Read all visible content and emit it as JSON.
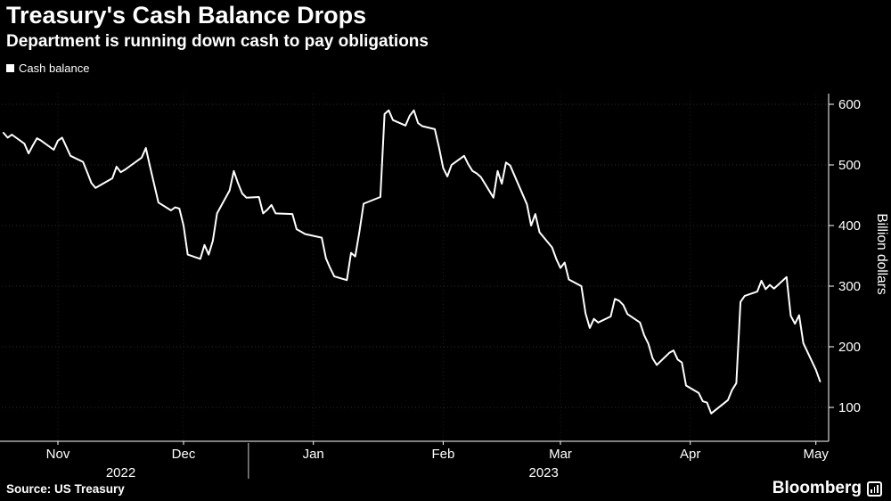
{
  "header": {
    "title": "Treasury's Cash Balance Drops",
    "subtitle": "Department is running down cash to pay obligations"
  },
  "legend": {
    "label": "Cash balance",
    "swatch_color": "#ffffff"
  },
  "footer": {
    "source": "Source: US Treasury",
    "brand": "Bloomberg"
  },
  "colors": {
    "background": "#000000",
    "text": "#ffffff",
    "line": "#ffffff",
    "grid": "#2e2e2e"
  },
  "chart_data": {
    "type": "line",
    "title": "Treasury's Cash Balance Drops",
    "subtitle": "Department is running down cash to pay obligations",
    "xlabel": "",
    "ylabel": "Billion dollars",
    "axis_side": "right",
    "grid": "horizontal-dotted",
    "legend_position": "top-left",
    "ylim": [
      40,
      640
    ],
    "y_ticks": [
      600,
      500,
      400,
      300,
      200,
      100
    ],
    "x_months": [
      {
        "label": "Nov",
        "date": "2022-11-01"
      },
      {
        "label": "Dec",
        "date": "2022-12-01"
      },
      {
        "label": "Jan",
        "date": "2023-01-01"
      },
      {
        "label": "Feb",
        "date": "2023-02-01"
      },
      {
        "label": "Mar",
        "date": "2023-03-01"
      },
      {
        "label": "Apr",
        "date": "2023-04-01"
      },
      {
        "label": "May",
        "date": "2023-05-01"
      }
    ],
    "x_years": [
      {
        "label": "2022",
        "anchor": "2022-11-16"
      },
      {
        "label": "2023",
        "anchor": "2023-02-25"
      }
    ],
    "series": [
      {
        "name": "Cash balance",
        "color": "#ffffff",
        "points": [
          [
            "2022-10-19",
            553
          ],
          [
            "2022-10-20",
            545
          ],
          [
            "2022-10-21",
            550
          ],
          [
            "2022-10-24",
            535
          ],
          [
            "2022-10-25",
            519
          ],
          [
            "2022-10-26",
            532
          ],
          [
            "2022-10-27",
            544
          ],
          [
            "2022-10-28",
            540
          ],
          [
            "2022-10-31",
            525
          ],
          [
            "2022-11-01",
            540
          ],
          [
            "2022-11-02",
            545
          ],
          [
            "2022-11-03",
            530
          ],
          [
            "2022-11-04",
            515
          ],
          [
            "2022-11-07",
            505
          ],
          [
            "2022-11-08",
            488
          ],
          [
            "2022-11-09",
            470
          ],
          [
            "2022-11-10",
            462
          ],
          [
            "2022-11-14",
            478
          ],
          [
            "2022-11-15",
            497
          ],
          [
            "2022-11-16",
            488
          ],
          [
            "2022-11-17",
            492
          ],
          [
            "2022-11-18",
            497
          ],
          [
            "2022-11-21",
            512
          ],
          [
            "2022-11-22",
            528
          ],
          [
            "2022-11-23",
            497
          ],
          [
            "2022-11-25",
            438
          ],
          [
            "2022-11-28",
            425
          ],
          [
            "2022-11-29",
            430
          ],
          [
            "2022-11-30",
            428
          ],
          [
            "2022-12-01",
            400
          ],
          [
            "2022-12-02",
            352
          ],
          [
            "2022-12-05",
            345
          ],
          [
            "2022-12-06",
            368
          ],
          [
            "2022-12-07",
            352
          ],
          [
            "2022-12-08",
            375
          ],
          [
            "2022-12-09",
            420
          ],
          [
            "2022-12-12",
            458
          ],
          [
            "2022-12-13",
            490
          ],
          [
            "2022-12-14",
            470
          ],
          [
            "2022-12-15",
            453
          ],
          [
            "2022-12-16",
            446
          ],
          [
            "2022-12-19",
            447
          ],
          [
            "2022-12-20",
            420
          ],
          [
            "2022-12-21",
            426
          ],
          [
            "2022-12-22",
            434
          ],
          [
            "2022-12-23",
            420
          ],
          [
            "2022-12-27",
            419
          ],
          [
            "2022-12-28",
            394
          ],
          [
            "2022-12-29",
            390
          ],
          [
            "2022-12-30",
            386
          ],
          [
            "2023-01-03",
            380
          ],
          [
            "2023-01-04",
            346
          ],
          [
            "2023-01-05",
            330
          ],
          [
            "2023-01-06",
            316
          ],
          [
            "2023-01-09",
            310
          ],
          [
            "2023-01-10",
            355
          ],
          [
            "2023-01-11",
            349
          ],
          [
            "2023-01-12",
            390
          ],
          [
            "2023-01-13",
            436
          ],
          [
            "2023-01-17",
            447
          ],
          [
            "2023-01-18",
            584
          ],
          [
            "2023-01-19",
            590
          ],
          [
            "2023-01-20",
            574
          ],
          [
            "2023-01-23",
            565
          ],
          [
            "2023-01-24",
            581
          ],
          [
            "2023-01-25",
            590
          ],
          [
            "2023-01-26",
            569
          ],
          [
            "2023-01-27",
            564
          ],
          [
            "2023-01-30",
            559
          ],
          [
            "2023-01-31",
            529
          ],
          [
            "2023-02-01",
            495
          ],
          [
            "2023-02-02",
            481
          ],
          [
            "2023-02-03",
            500
          ],
          [
            "2023-02-06",
            515
          ],
          [
            "2023-02-07",
            501
          ],
          [
            "2023-02-08",
            490
          ],
          [
            "2023-02-09",
            486
          ],
          [
            "2023-02-10",
            480
          ],
          [
            "2023-02-13",
            446
          ],
          [
            "2023-02-14",
            490
          ],
          [
            "2023-02-15",
            469
          ],
          [
            "2023-02-16",
            504
          ],
          [
            "2023-02-17",
            499
          ],
          [
            "2023-02-21",
            435
          ],
          [
            "2023-02-22",
            400
          ],
          [
            "2023-02-23",
            419
          ],
          [
            "2023-02-24",
            389
          ],
          [
            "2023-02-27",
            364
          ],
          [
            "2023-02-28",
            345
          ],
          [
            "2023-03-01",
            330
          ],
          [
            "2023-03-02",
            339
          ],
          [
            "2023-03-03",
            311
          ],
          [
            "2023-03-06",
            300
          ],
          [
            "2023-03-07",
            255
          ],
          [
            "2023-03-08",
            231
          ],
          [
            "2023-03-09",
            246
          ],
          [
            "2023-03-10",
            240
          ],
          [
            "2023-03-13",
            250
          ],
          [
            "2023-03-14",
            279
          ],
          [
            "2023-03-15",
            276
          ],
          [
            "2023-03-16",
            269
          ],
          [
            "2023-03-17",
            254
          ],
          [
            "2023-03-20",
            240
          ],
          [
            "2023-03-21",
            219
          ],
          [
            "2023-03-22",
            205
          ],
          [
            "2023-03-23",
            181
          ],
          [
            "2023-03-24",
            170
          ],
          [
            "2023-03-27",
            190
          ],
          [
            "2023-03-28",
            194
          ],
          [
            "2023-03-29",
            179
          ],
          [
            "2023-03-30",
            174
          ],
          [
            "2023-03-31",
            136
          ],
          [
            "2023-04-03",
            124
          ],
          [
            "2023-04-04",
            110
          ],
          [
            "2023-04-05",
            108
          ],
          [
            "2023-04-06",
            90
          ],
          [
            "2023-04-10",
            112
          ],
          [
            "2023-04-11",
            129
          ],
          [
            "2023-04-12",
            140
          ],
          [
            "2023-04-13",
            274
          ],
          [
            "2023-04-14",
            284
          ],
          [
            "2023-04-17",
            291
          ],
          [
            "2023-04-18",
            309
          ],
          [
            "2023-04-19",
            295
          ],
          [
            "2023-04-20",
            302
          ],
          [
            "2023-04-21",
            296
          ],
          [
            "2023-04-24",
            315
          ],
          [
            "2023-04-25",
            251
          ],
          [
            "2023-04-26",
            238
          ],
          [
            "2023-04-27",
            252
          ],
          [
            "2023-04-28",
            206
          ],
          [
            "2023-05-01",
            162
          ],
          [
            "2023-05-02",
            143
          ]
        ]
      }
    ]
  }
}
